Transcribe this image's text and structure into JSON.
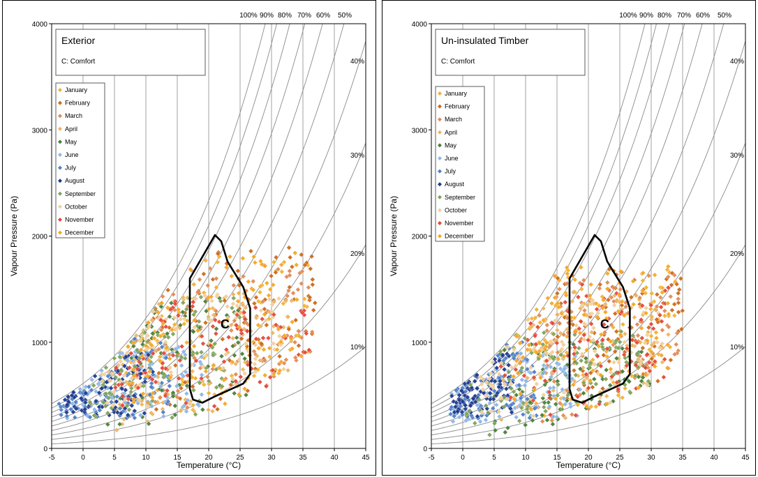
{
  "chart_data": [
    {
      "type": "scatter",
      "title": "Exterior",
      "subtitle": "C: Comfort",
      "xlabel": "Temperature (°C)",
      "ylabel": "Vapour Pressure (Pa)",
      "xlim": [
        -5,
        45
      ],
      "ylim": [
        0,
        4000
      ],
      "xticks": [
        -5,
        0,
        5,
        10,
        15,
        20,
        25,
        30,
        35,
        40,
        45
      ],
      "yticks": [
        0,
        1000,
        2000,
        3000,
        4000
      ],
      "legend_position": "top-left",
      "grid": true,
      "rh_curves": [
        "100%",
        "90%",
        "80%",
        "70%",
        "60%",
        "50%",
        "40%",
        "30%",
        "20%",
        "10%"
      ],
      "comfort_zone": {
        "label": "C",
        "polygon": [
          [
            17,
            1600
          ],
          [
            21,
            2010
          ],
          [
            22,
            1950
          ],
          [
            23,
            1760
          ],
          [
            25.5,
            1520
          ],
          [
            26.6,
            1320
          ],
          [
            26.6,
            700
          ],
          [
            25.5,
            610
          ],
          [
            21,
            490
          ],
          [
            19,
            430
          ],
          [
            17.5,
            460
          ],
          [
            17,
            560
          ]
        ]
      },
      "series": [
        {
          "name": "January",
          "color": "#f4b032",
          "t_range": [
            5,
            36
          ],
          "vp_range": [
            350,
            1850
          ]
        },
        {
          "name": "February",
          "color": "#cc6a1b",
          "t_range": [
            10,
            37
          ],
          "vp_range": [
            350,
            1900
          ]
        },
        {
          "name": "March",
          "color": "#e08a55",
          "t_range": [
            8,
            37
          ],
          "vp_range": [
            350,
            1700
          ]
        },
        {
          "name": "April",
          "color": "#ebb563",
          "t_range": [
            5,
            34
          ],
          "vp_range": [
            120,
            1500
          ]
        },
        {
          "name": "May",
          "color": "#4a7f3a",
          "t_range": [
            2,
            26
          ],
          "vp_range": [
            200,
            1450
          ]
        },
        {
          "name": "June",
          "color": "#8cb6e8",
          "t_range": [
            -3,
            19
          ],
          "vp_range": [
            280,
            1000
          ]
        },
        {
          "name": "July",
          "color": "#4f7fc8",
          "t_range": [
            -4,
            14
          ],
          "vp_range": [
            280,
            1050
          ]
        },
        {
          "name": "August",
          "color": "#1f3a8c",
          "t_range": [
            -3,
            12
          ],
          "vp_range": [
            300,
            950
          ]
        },
        {
          "name": "September",
          "color": "#7da35a",
          "t_range": [
            1,
            25
          ],
          "vp_range": [
            280,
            1450
          ]
        },
        {
          "name": "October",
          "color": "#f2cf9a",
          "t_range": [
            3,
            32
          ],
          "vp_range": [
            350,
            1450
          ]
        },
        {
          "name": "November",
          "color": "#e4483a",
          "t_range": [
            5,
            36
          ],
          "vp_range": [
            380,
            1400
          ]
        },
        {
          "name": "December",
          "color": "#f5a623",
          "t_range": [
            7,
            35
          ],
          "vp_range": [
            400,
            1850
          ]
        }
      ]
    },
    {
      "type": "scatter",
      "title": "Un-insulated Timber",
      "subtitle": "C: Comfort",
      "xlabel": "Temperature (°C)",
      "ylabel": "Vapour Pressure (Pa)",
      "xlim": [
        -5,
        45
      ],
      "ylim": [
        0,
        4000
      ],
      "xticks": [
        -5,
        0,
        5,
        10,
        15,
        20,
        25,
        30,
        35,
        40,
        45
      ],
      "yticks": [
        0,
        1000,
        2000,
        3000,
        4000
      ],
      "legend_position": "top-left",
      "grid": true,
      "rh_curves": [
        "100%",
        "90%",
        "80%",
        "70%",
        "60%",
        "50%",
        "40%",
        "30%",
        "20%",
        "10%"
      ],
      "comfort_zone": {
        "label": "C",
        "polygon": [
          [
            17,
            1600
          ],
          [
            21,
            2010
          ],
          [
            22,
            1950
          ],
          [
            23,
            1760
          ],
          [
            25.5,
            1520
          ],
          [
            26.6,
            1320
          ],
          [
            26.6,
            700
          ],
          [
            25.5,
            610
          ],
          [
            21,
            490
          ],
          [
            19,
            430
          ],
          [
            17.5,
            460
          ],
          [
            17,
            560
          ]
        ]
      },
      "series": [
        {
          "name": "January",
          "color": "#f4b032",
          "t_range": [
            10,
            34
          ],
          "vp_range": [
            300,
            1700
          ]
        },
        {
          "name": "February",
          "color": "#cc6a1b",
          "t_range": [
            15,
            35
          ],
          "vp_range": [
            400,
            1700
          ]
        },
        {
          "name": "March",
          "color": "#e08a55",
          "t_range": [
            12,
            35
          ],
          "vp_range": [
            250,
            1700
          ]
        },
        {
          "name": "April",
          "color": "#ebb563",
          "t_range": [
            6,
            33
          ],
          "vp_range": [
            250,
            1500
          ]
        },
        {
          "name": "May",
          "color": "#4a7f3a",
          "t_range": [
            5,
            30
          ],
          "vp_range": [
            30,
            1000
          ]
        },
        {
          "name": "June",
          "color": "#8cb6e8",
          "t_range": [
            -2,
            20
          ],
          "vp_range": [
            250,
            900
          ]
        },
        {
          "name": "July",
          "color": "#4f7fc8",
          "t_range": [
            -2,
            12
          ],
          "vp_range": [
            280,
            1000
          ]
        },
        {
          "name": "August",
          "color": "#1f3a8c",
          "t_range": [
            -2,
            8
          ],
          "vp_range": [
            300,
            900
          ]
        },
        {
          "name": "September",
          "color": "#7da35a",
          "t_range": [
            0,
            30
          ],
          "vp_range": [
            50,
            1100
          ]
        },
        {
          "name": "October",
          "color": "#f2cf9a",
          "t_range": [
            2,
            32
          ],
          "vp_range": [
            300,
            1400
          ]
        },
        {
          "name": "November",
          "color": "#e4483a",
          "t_range": [
            6,
            33
          ],
          "vp_range": [
            200,
            1550
          ]
        },
        {
          "name": "December",
          "color": "#f5a623",
          "t_range": [
            8,
            33
          ],
          "vp_range": [
            350,
            1750
          ]
        }
      ]
    }
  ]
}
